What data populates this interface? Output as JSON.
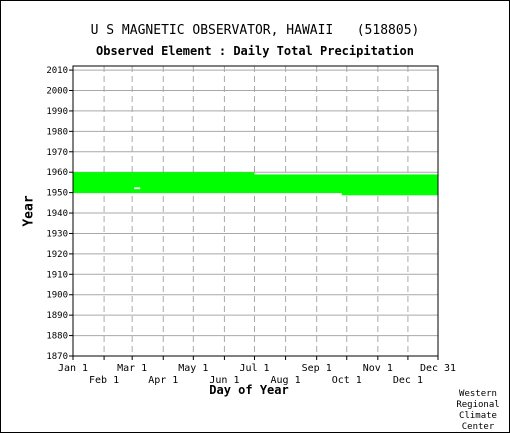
{
  "chart_data": {
    "type": "bar",
    "title": "U S MAGNETIC OBSERVATOR, HAWAII   (518805)",
    "subtitle": "Observed Element : Daily Total Precipitation",
    "xlabel": "Day of Year",
    "ylabel": "Year",
    "y_ticks": [
      "1870",
      "1880",
      "1890",
      "1900",
      "1910",
      "1920",
      "1930",
      "1940",
      "1950",
      "1960",
      "1970",
      "1980",
      "1990",
      "2000",
      "2010"
    ],
    "x_ticks_top": [
      "Jan 1",
      "Mar 1",
      "May 1",
      "Jul 1",
      "Sep 1",
      "Nov 1",
      "Dec 31"
    ],
    "x_ticks_bottom": [
      "Feb 1",
      "Apr 1",
      "Jun 1",
      "Aug 1",
      "Oct 1",
      "Dec 1"
    ],
    "x_tick_days": [
      1,
      32,
      60,
      91,
      121,
      152,
      182,
      213,
      244,
      274,
      305,
      335,
      365
    ],
    "xlim": [
      1,
      365
    ],
    "ylim": [
      1870,
      2012
    ],
    "grid": true,
    "bar_color": "#00ff00",
    "coverage": [
      {
        "day_start": 1,
        "day_end": 182,
        "year_start": 1949.8,
        "year_end": 1960.0
      },
      {
        "day_start": 182,
        "day_end": 365,
        "year_start": 1949.8,
        "year_end": 1958.9
      },
      {
        "day_start": 269,
        "day_end": 365,
        "year_start": 1948.7,
        "year_end": 1949.8
      }
    ],
    "gaps": [
      {
        "day_start": 62,
        "day_end": 68,
        "year_start": 1951.7,
        "year_end": 1952.6
      }
    ]
  },
  "credit": [
    "Western",
    "Regional",
    "Climate",
    "Center"
  ]
}
